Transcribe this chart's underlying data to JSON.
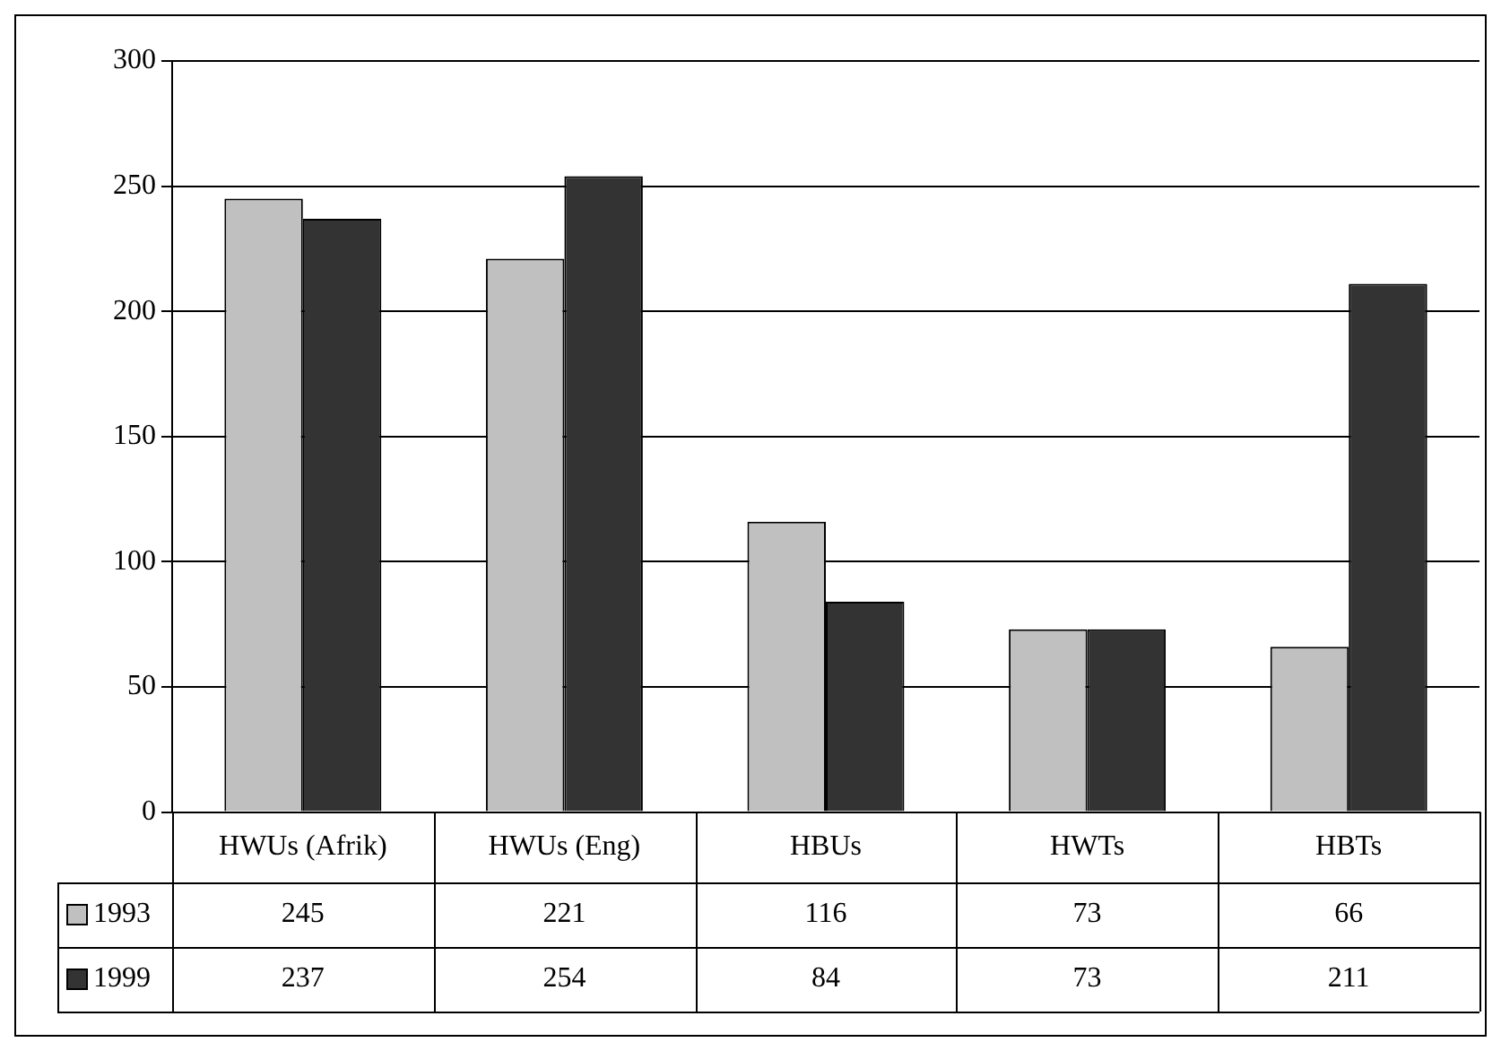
{
  "chart_data": {
    "type": "bar",
    "categories": [
      "HWUs (Afrik)",
      "HWUs (Eng)",
      "HBUs",
      "HWTs",
      "HBTs"
    ],
    "series": [
      {
        "name": "1993",
        "color": "#c0c0c0",
        "values": [
          245,
          221,
          116,
          73,
          66
        ]
      },
      {
        "name": "1999",
        "color": "#333333",
        "values": [
          237,
          254,
          84,
          73,
          211
        ]
      }
    ],
    "ylim": [
      0,
      300
    ],
    "yticks": [
      0,
      50,
      100,
      150,
      200,
      250,
      300
    ],
    "grid": "y",
    "legend": "bottom left",
    "data_labels": true
  }
}
